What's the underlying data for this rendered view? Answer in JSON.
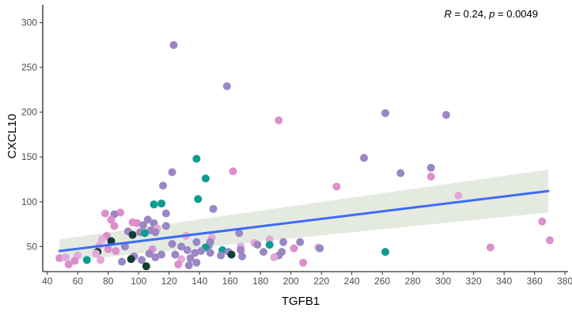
{
  "chart_data": {
    "type": "scatter",
    "xlabel": "TGFB1",
    "ylabel": "CXCL10",
    "xlim": [
      37,
      382
    ],
    "ylim": [
      22,
      320
    ],
    "x_ticks": [
      40,
      60,
      80,
      100,
      120,
      140,
      160,
      180,
      200,
      220,
      240,
      260,
      280,
      300,
      320,
      340,
      360,
      380
    ],
    "y_ticks": [
      50,
      100,
      150,
      200,
      250,
      300
    ],
    "grid": false,
    "stat_annotation": {
      "r_symbol": "R",
      "r_text": " = 0.24, ",
      "p_symbol": "p",
      "p_text": " = 0.0049"
    },
    "colors": {
      "purple": "#9b87c4",
      "pink": "#dc8fcb",
      "lightpink": "#e3a9d8",
      "teal": "#0d9c8f",
      "dark": "#143d35",
      "line": "#3d6cf5",
      "band": "#dfe6da"
    },
    "regression": {
      "x": [
        48,
        369
      ],
      "y": [
        45,
        112
      ],
      "band_upper": [
        58,
        136
      ],
      "band_lower": [
        33,
        88
      ]
    },
    "points": [
      {
        "x": 123,
        "y": 275,
        "c": "purple"
      },
      {
        "x": 158,
        "y": 229,
        "c": "purple"
      },
      {
        "x": 262,
        "y": 199,
        "c": "purple"
      },
      {
        "x": 302,
        "y": 197,
        "c": "purple"
      },
      {
        "x": 192,
        "y": 191,
        "c": "pink"
      },
      {
        "x": 248,
        "y": 149,
        "c": "purple"
      },
      {
        "x": 138,
        "y": 148,
        "c": "teal"
      },
      {
        "x": 292,
        "y": 138,
        "c": "purple"
      },
      {
        "x": 162,
        "y": 134,
        "c": "pink"
      },
      {
        "x": 122,
        "y": 133,
        "c": "purple"
      },
      {
        "x": 272,
        "y": 132,
        "c": "purple"
      },
      {
        "x": 292,
        "y": 128,
        "c": "pink"
      },
      {
        "x": 144,
        "y": 126,
        "c": "teal"
      },
      {
        "x": 116,
        "y": 118,
        "c": "purple"
      },
      {
        "x": 230,
        "y": 117,
        "c": "pink"
      },
      {
        "x": 310,
        "y": 107,
        "c": "lightpink"
      },
      {
        "x": 139,
        "y": 103,
        "c": "teal"
      },
      {
        "x": 115,
        "y": 98,
        "c": "teal"
      },
      {
        "x": 110,
        "y": 97,
        "c": "teal"
      },
      {
        "x": 149,
        "y": 92,
        "c": "purple"
      },
      {
        "x": 88,
        "y": 88,
        "c": "pink"
      },
      {
        "x": 78,
        "y": 87,
        "c": "pink"
      },
      {
        "x": 84,
        "y": 86,
        "c": "purple"
      },
      {
        "x": 118,
        "y": 87,
        "c": "purple"
      },
      {
        "x": 82,
        "y": 80,
        "c": "pink"
      },
      {
        "x": 106,
        "y": 80,
        "c": "purple"
      },
      {
        "x": 96,
        "y": 77,
        "c": "pink"
      },
      {
        "x": 99,
        "y": 76,
        "c": "pink"
      },
      {
        "x": 110,
        "y": 76,
        "c": "purple"
      },
      {
        "x": 365,
        "y": 78,
        "c": "pink"
      },
      {
        "x": 84,
        "y": 73,
        "c": "pink"
      },
      {
        "x": 103,
        "y": 74,
        "c": "purple"
      },
      {
        "x": 118,
        "y": 73,
        "c": "purple"
      },
      {
        "x": 112,
        "y": 70,
        "c": "lightpink"
      },
      {
        "x": 108,
        "y": 68,
        "c": "purple"
      },
      {
        "x": 93,
        "y": 67,
        "c": "purple"
      },
      {
        "x": 101,
        "y": 66,
        "c": "purple"
      },
      {
        "x": 111,
        "y": 66,
        "c": "purple"
      },
      {
        "x": 104,
        "y": 65,
        "c": "teal"
      },
      {
        "x": 166,
        "y": 65,
        "c": "purple"
      },
      {
        "x": 96,
        "y": 63,
        "c": "dark"
      },
      {
        "x": 79,
        "y": 62,
        "c": "pink"
      },
      {
        "x": 131,
        "y": 62,
        "c": "lightpink"
      },
      {
        "x": 148,
        "y": 60,
        "c": "lightpink"
      },
      {
        "x": 76,
        "y": 58,
        "c": "lightpink"
      },
      {
        "x": 186,
        "y": 58,
        "c": "lightpink"
      },
      {
        "x": 370,
        "y": 57,
        "c": "pink"
      },
      {
        "x": 82,
        "y": 56,
        "c": "dark"
      },
      {
        "x": 138,
        "y": 55,
        "c": "purple"
      },
      {
        "x": 147,
        "y": 55,
        "c": "purple"
      },
      {
        "x": 176,
        "y": 54,
        "c": "lightpink"
      },
      {
        "x": 195,
        "y": 55,
        "c": "purple"
      },
      {
        "x": 206,
        "y": 55,
        "c": "purple"
      },
      {
        "x": 122,
        "y": 53,
        "c": "purple"
      },
      {
        "x": 178,
        "y": 52,
        "c": "purple"
      },
      {
        "x": 186,
        "y": 52,
        "c": "teal"
      },
      {
        "x": 146,
        "y": 51,
        "c": "purple"
      },
      {
        "x": 74,
        "y": 51,
        "c": "lightpink"
      },
      {
        "x": 91,
        "y": 50,
        "c": "purple"
      },
      {
        "x": 167,
        "y": 50,
        "c": "lightpink"
      },
      {
        "x": 128,
        "y": 50,
        "c": "purple"
      },
      {
        "x": 144,
        "y": 49,
        "c": "teal"
      },
      {
        "x": 331,
        "y": 49,
        "c": "pink"
      },
      {
        "x": 218,
        "y": 49,
        "c": "lightpink"
      },
      {
        "x": 219,
        "y": 48,
        "c": "purple"
      },
      {
        "x": 202,
        "y": 48,
        "c": "pink"
      },
      {
        "x": 80,
        "y": 47,
        "c": "pink"
      },
      {
        "x": 109,
        "y": 47,
        "c": "pink"
      },
      {
        "x": 167,
        "y": 46,
        "c": "purple"
      },
      {
        "x": 155,
        "y": 46,
        "c": "teal"
      },
      {
        "x": 132,
        "y": 46,
        "c": "purple"
      },
      {
        "x": 141,
        "y": 45,
        "c": "purple"
      },
      {
        "x": 85,
        "y": 45,
        "c": "pink"
      },
      {
        "x": 73,
        "y": 44,
        "c": "dark"
      },
      {
        "x": 262,
        "y": 44,
        "c": "teal"
      },
      {
        "x": 159,
        "y": 44,
        "c": "purple"
      },
      {
        "x": 182,
        "y": 44,
        "c": "purple"
      },
      {
        "x": 194,
        "y": 44,
        "c": "purple"
      },
      {
        "x": 137,
        "y": 43,
        "c": "purple"
      },
      {
        "x": 147,
        "y": 43,
        "c": "purple"
      },
      {
        "x": 72,
        "y": 42,
        "c": "lightpink"
      },
      {
        "x": 107,
        "y": 42,
        "c": "purple"
      },
      {
        "x": 161,
        "y": 41,
        "c": "dark"
      },
      {
        "x": 124,
        "y": 41,
        "c": "purple"
      },
      {
        "x": 115,
        "y": 41,
        "c": "purple"
      },
      {
        "x": 154,
        "y": 40,
        "c": "purple"
      },
      {
        "x": 192,
        "y": 40,
        "c": "purple"
      },
      {
        "x": 60,
        "y": 40,
        "c": "lightpink"
      },
      {
        "x": 168,
        "y": 39,
        "c": "purple"
      },
      {
        "x": 97,
        "y": 39,
        "c": "purple"
      },
      {
        "x": 111,
        "y": 38,
        "c": "purple"
      },
      {
        "x": 189,
        "y": 38,
        "c": "lightpink"
      },
      {
        "x": 48,
        "y": 37,
        "c": "pink"
      },
      {
        "x": 52,
        "y": 38,
        "c": "lightpink"
      },
      {
        "x": 95,
        "y": 36,
        "c": "dark"
      },
      {
        "x": 134,
        "y": 37,
        "c": "purple"
      },
      {
        "x": 128,
        "y": 36,
        "c": "lightpink"
      },
      {
        "x": 102,
        "y": 35,
        "c": "purple"
      },
      {
        "x": 75,
        "y": 35,
        "c": "lightpink"
      },
      {
        "x": 66,
        "y": 35,
        "c": "teal"
      },
      {
        "x": 58,
        "y": 34,
        "c": "pink"
      },
      {
        "x": 89,
        "y": 33,
        "c": "purple"
      },
      {
        "x": 208,
        "y": 32,
        "c": "pink"
      },
      {
        "x": 138,
        "y": 32,
        "c": "purple"
      },
      {
        "x": 54,
        "y": 30,
        "c": "pink"
      },
      {
        "x": 126,
        "y": 30,
        "c": "pink"
      },
      {
        "x": 133,
        "y": 29,
        "c": "purple"
      },
      {
        "x": 105,
        "y": 28,
        "c": "dark"
      }
    ]
  }
}
